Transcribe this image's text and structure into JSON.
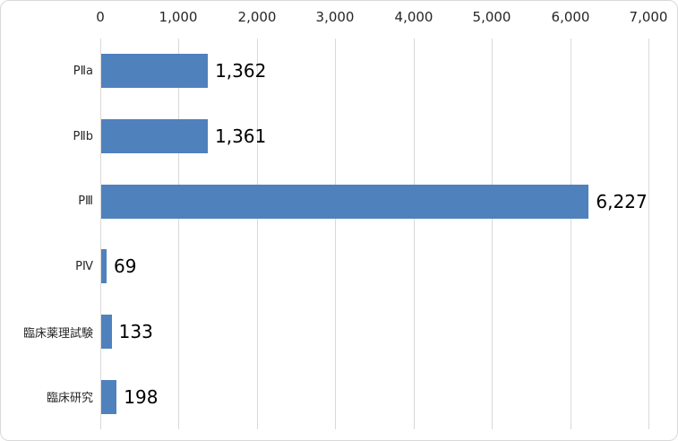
{
  "chart_data": {
    "type": "bar",
    "orientation": "horizontal",
    "title": "",
    "categories": [
      "PⅡa",
      "PⅡb",
      "PⅢ",
      "PⅣ",
      "臨床薬理試験",
      "臨床研究"
    ],
    "values": [
      1362,
      1361,
      6227,
      69,
      133,
      198
    ],
    "value_labels": [
      "1,362",
      "1,361",
      "6,227",
      "69",
      "133",
      "198"
    ],
    "x_axis": {
      "position": "top",
      "min": 0,
      "max": 7000,
      "tick_interval": 1000,
      "tick_labels": [
        "0",
        "1,000",
        "2,000",
        "3,000",
        "4,000",
        "5,000",
        "6,000",
        "7,000"
      ],
      "gridlines": true
    },
    "legend": "none",
    "colors": {
      "bar": "#4F81BD",
      "gridline": "#D9D9D9",
      "axis_text": "#262626",
      "value_text": "#000000",
      "frame_border": "#D9D9D9",
      "background": "#FFFFFF"
    }
  }
}
